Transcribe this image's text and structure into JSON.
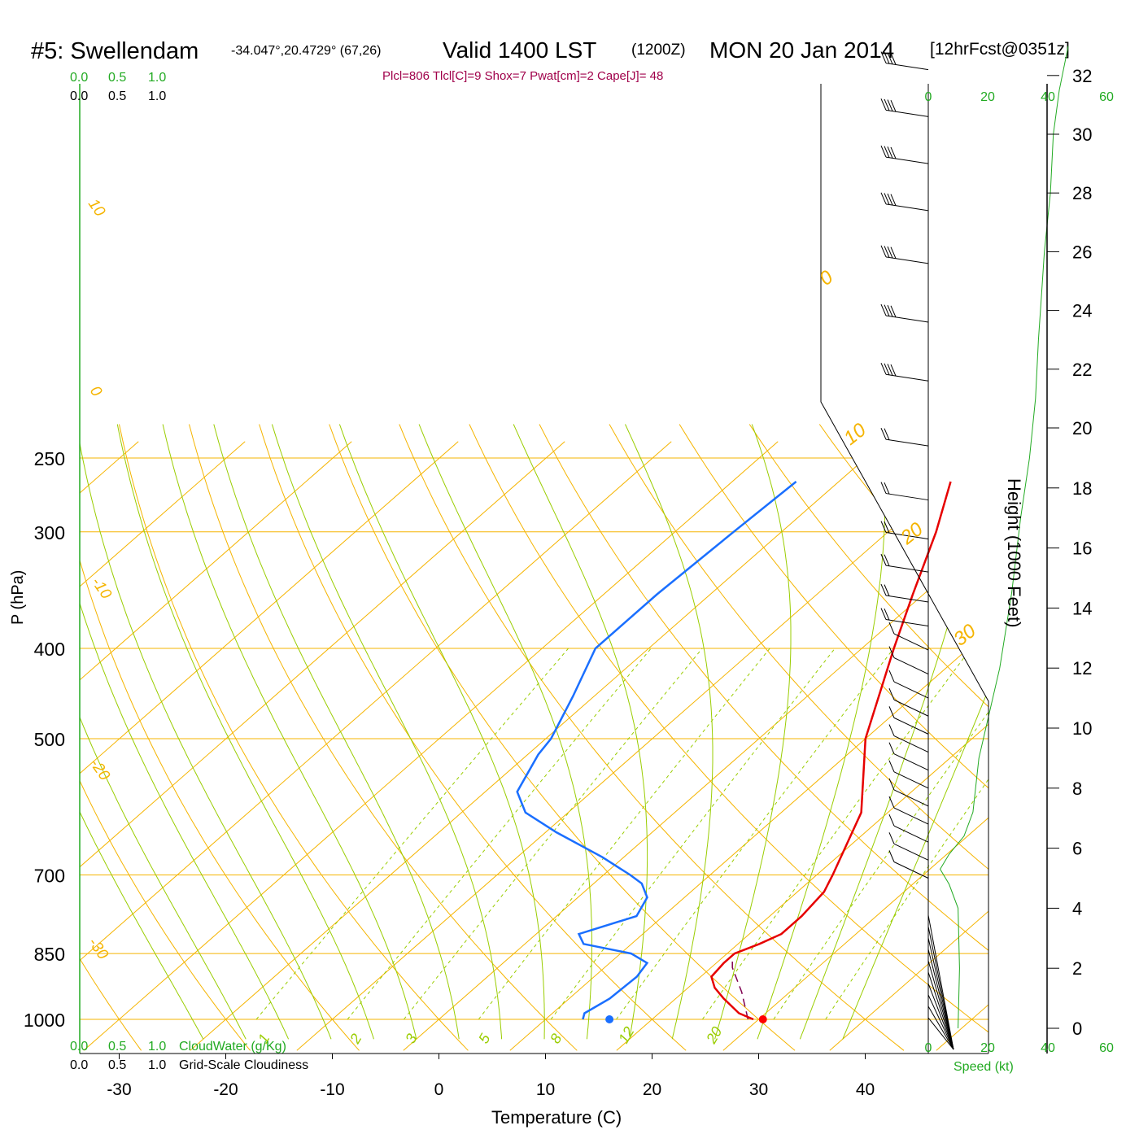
{
  "header": {
    "station": "#5: Swellendam",
    "coords": "-34.047°,20.4729° (67,26)",
    "valid": "Valid 1400 LST",
    "zulu": "(1200Z)",
    "date": "MON 20 Jan 2014",
    "forecast": "[12hrFcst@0351z]",
    "indices": "Plcl=806 Tlcl[C]=9 Shox=7 Pwat[cm]=2 Cape[J]= 48"
  },
  "colors": {
    "isotherm": "#f5b400",
    "dry_adiabat": "#9acd00",
    "mixing_ratio": "#9acd00",
    "temperature": "#e60000",
    "dewpoint": "#1a6fff",
    "parcel": "#800050",
    "height_line": "#22aa22",
    "green_text": "#22aa22",
    "title_red": "#a0004a"
  },
  "chart_data": {
    "type": "line",
    "title": "#5: Swellendam  Valid 1400 LST (1200Z) MON 20 Jan 2014",
    "xlabel": "Temperature (C)",
    "ylabel": "P (hPa)",
    "right_axis_label": "Height (1000 Feet)",
    "x_ticks": [
      -30,
      -20,
      -10,
      0,
      10,
      20,
      30,
      40
    ],
    "y_ticks": [
      250,
      300,
      400,
      500,
      700,
      850,
      1000
    ],
    "height_ticks": [
      0,
      2,
      4,
      6,
      8,
      10,
      12,
      14,
      16,
      18,
      20,
      22,
      24,
      26,
      28,
      30,
      32
    ],
    "isotherm_labels": [
      "10",
      "0",
      "-10",
      "-20",
      "-30"
    ],
    "isotherm_labels_right": [
      "0",
      "10",
      "20",
      "30"
    ],
    "mixing_ratio_labels": [
      "1",
      "2",
      "3",
      "5",
      "8",
      "12",
      "20"
    ],
    "cloud_scale_top_green": [
      "0.0",
      "0.5",
      "1.0"
    ],
    "cloud_scale_top_black": [
      "0.0",
      "0.5",
      "1.0"
    ],
    "cloud_scale_bottom_green": [
      "0.0",
      "0.5",
      "1.0"
    ],
    "cloud_scale_bottom_black": [
      "0.0",
      "0.5",
      "1.0"
    ],
    "cloudwater_label": "CloudWater (g/Kg)",
    "cloudiness_label": "Grid-Scale Cloudiness",
    "speed_ticks": [
      "0",
      "20",
      "40",
      "60"
    ],
    "speed_label": "Speed (kt)",
    "temperature": [
      [
        1000,
        29.5
      ],
      [
        985,
        27.5
      ],
      [
        950,
        24.5
      ],
      [
        925,
        22.5
      ],
      [
        900,
        21.0
      ],
      [
        870,
        20.7
      ],
      [
        850,
        20.7
      ],
      [
        830,
        22.0
      ],
      [
        810,
        23.0
      ],
      [
        775,
        23.0
      ],
      [
        730,
        22.5
      ],
      [
        700,
        21.5
      ],
      [
        600,
        17.5
      ],
      [
        500,
        10.0
      ],
      [
        400,
        3.0
      ],
      [
        350,
        -1.0
      ],
      [
        300,
        -5.5
      ],
      [
        265,
        -9.5
      ]
    ],
    "dewpoint": [
      [
        1000,
        13.5
      ],
      [
        985,
        13.0
      ],
      [
        950,
        13.8
      ],
      [
        900,
        14.0
      ],
      [
        870,
        13.5
      ],
      [
        850,
        11.0
      ],
      [
        830,
        5.5
      ],
      [
        810,
        4.0
      ],
      [
        775,
        7.5
      ],
      [
        740,
        6.5
      ],
      [
        715,
        4.5
      ],
      [
        700,
        2.5
      ],
      [
        670,
        -2.0
      ],
      [
        630,
        -9.0
      ],
      [
        600,
        -14.0
      ],
      [
        570,
        -17.0
      ],
      [
        520,
        -19.0
      ],
      [
        500,
        -19.5
      ],
      [
        450,
        -22.0
      ],
      [
        400,
        -25.0
      ],
      [
        350,
        -25.0
      ],
      [
        300,
        -24.5
      ],
      [
        265,
        -24.0
      ]
    ],
    "parcel": [
      [
        1000,
        29.0
      ],
      [
        935,
        25.5
      ],
      [
        880,
        22.0
      ],
      [
        860,
        21.0
      ]
    ],
    "surface_temperature_point": 30.4,
    "surface_dewpoint_point": 16.0,
    "wind_profile_height_kft": [
      5,
      5.6,
      6.2,
      6.8,
      7.4,
      8,
      8.6,
      9.2,
      9.8,
      10.4,
      11,
      11.8,
      12.6,
      13.4,
      14.2,
      15.2,
      16.3,
      17.6,
      19.4,
      21.6,
      23.6,
      25.6,
      27.4,
      29.0,
      30.6,
      32.2
    ],
    "height_speed_profile": [
      [
        0,
        10
      ],
      [
        2,
        10.5
      ],
      [
        4,
        10
      ],
      [
        4.8,
        7
      ],
      [
        5.3,
        4
      ],
      [
        5.8,
        7
      ],
      [
        6.4,
        12
      ],
      [
        7.2,
        15
      ],
      [
        9,
        17
      ],
      [
        12,
        24
      ],
      [
        14.5,
        28
      ],
      [
        17,
        31
      ],
      [
        19,
        34
      ],
      [
        21,
        36
      ],
      [
        23,
        37
      ],
      [
        24.5,
        38
      ],
      [
        26,
        39
      ],
      [
        28,
        41
      ],
      [
        30,
        42
      ],
      [
        31.5,
        44
      ],
      [
        33,
        47
      ]
    ]
  }
}
